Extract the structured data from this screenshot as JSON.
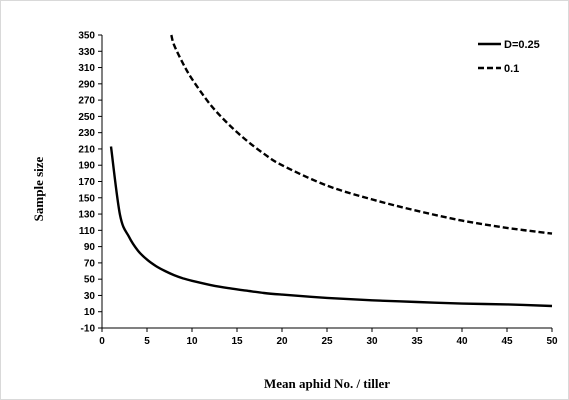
{
  "chart_data": {
    "type": "line",
    "title": "",
    "xlabel": "Mean aphid No. / tiller",
    "ylabel": "Sample size",
    "xlim": [
      0,
      50
    ],
    "ylim": [
      -10,
      350
    ],
    "xticks": [
      0,
      5,
      10,
      15,
      20,
      25,
      30,
      35,
      40,
      45,
      50
    ],
    "yticks": [
      -10,
      10,
      30,
      50,
      70,
      90,
      110,
      130,
      150,
      170,
      190,
      210,
      230,
      250,
      270,
      290,
      310,
      330,
      350
    ],
    "grid": false,
    "legend_position": "top-right",
    "series": [
      {
        "name": "D=0.25",
        "style": "solid",
        "color": "#000000",
        "x": [
          1,
          2,
          3,
          4,
          5,
          6,
          7,
          8,
          9,
          10,
          12,
          14,
          16,
          18,
          20,
          25,
          30,
          35,
          40,
          45,
          50
        ],
        "y": [
          213,
          129,
          102,
          85,
          74,
          66,
          60,
          55,
          51,
          48,
          43,
          39,
          36,
          33,
          31,
          27,
          24,
          22,
          20,
          19,
          17
        ]
      },
      {
        "name": "0.1",
        "style": "dashed",
        "color": "#000000",
        "x": [
          7.7,
          8,
          9,
          10,
          12,
          14,
          16,
          18,
          20,
          25,
          30,
          35,
          40,
          45,
          50
        ],
        "y": [
          350,
          338,
          315,
          296,
          265,
          241,
          221,
          204,
          190,
          165,
          148,
          134,
          122,
          113,
          106
        ]
      }
    ]
  }
}
